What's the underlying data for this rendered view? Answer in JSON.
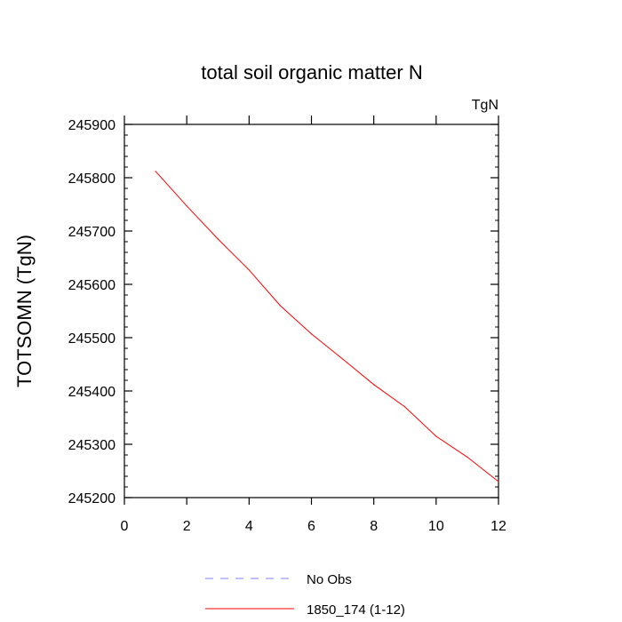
{
  "chart_data": {
    "type": "line",
    "title": "total soil organic matter N",
    "units_label": "TgN",
    "xlabel": "",
    "ylabel": "TOTSOMN  (TgN)",
    "xlim": [
      0,
      12
    ],
    "ylim": [
      245200,
      245900
    ],
    "x_ticks": [
      0,
      2,
      4,
      6,
      8,
      10,
      12
    ],
    "y_ticks": [
      245200,
      245300,
      245400,
      245500,
      245600,
      245700,
      245800,
      245900
    ],
    "series": [
      {
        "name": "1850_174 (1-12)",
        "color": "#ff0000",
        "style": "solid",
        "x": [
          1,
          2,
          3,
          4,
          5,
          6,
          7,
          8,
          9,
          10,
          11,
          12
        ],
        "y": [
          245812,
          245747,
          245685,
          245627,
          245560,
          245507,
          245460,
          245412,
          245370,
          245315,
          245276,
          245230
        ]
      }
    ],
    "legend": [
      {
        "label": "No Obs",
        "color": "#8080ff",
        "style": "dashed"
      },
      {
        "label": "1850_174 (1-12)",
        "color": "#ff0000",
        "style": "solid"
      }
    ],
    "legend_position": "bottom"
  }
}
